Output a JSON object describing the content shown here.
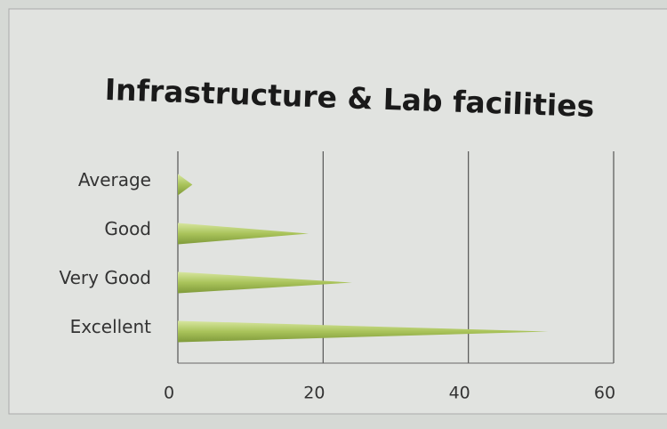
{
  "chart_data": {
    "type": "bar",
    "orientation": "horizontal",
    "title": "Infrastructure & Lab facilities",
    "categories": [
      "Average",
      "Good",
      "Very Good",
      "Excellent"
    ],
    "values": [
      2,
      18,
      24,
      51
    ],
    "color": "#a9c35a",
    "xlim": [
      0,
      60
    ],
    "xticks": [
      0,
      20,
      40,
      60
    ],
    "grid": true
  }
}
